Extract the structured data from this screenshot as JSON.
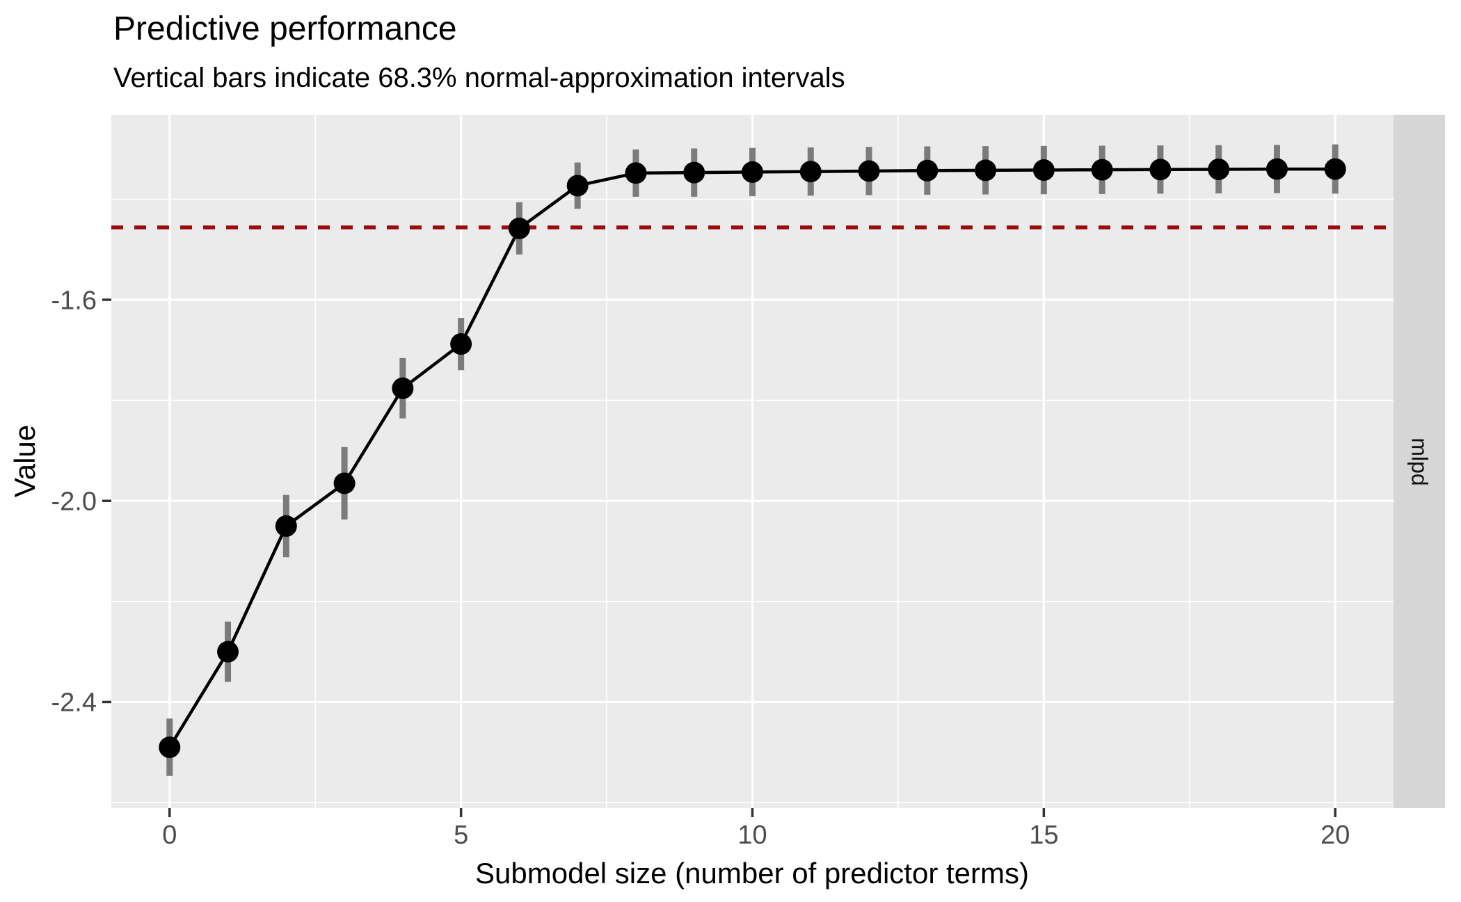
{
  "chart": {
    "title": "Predictive performance",
    "subtitle": "Vertical bars indicate 68.3% normal-approximation intervals",
    "xlabel": "Submodel size (number of predictor terms)",
    "ylabel": "Value",
    "facet_label": "mlpd"
  },
  "chart_data": {
    "type": "line",
    "title": "Predictive performance",
    "subtitle": "Vertical bars indicate 68.3% normal-approximation intervals",
    "xlabel": "Submodel size (number of predictor terms)",
    "ylabel": "Value",
    "facet_label": "mlpd",
    "interval_note": "68.3% normal-approximation intervals",
    "x": [
      0,
      1,
      2,
      3,
      4,
      5,
      6,
      7,
      8,
      9,
      10,
      11,
      12,
      13,
      14,
      15,
      16,
      17,
      18,
      19,
      20
    ],
    "y": [
      -2.49,
      -2.3,
      -2.05,
      -1.965,
      -1.776,
      -1.688,
      -1.458,
      -1.373,
      -1.348,
      -1.347,
      -1.346,
      -1.345,
      -1.344,
      -1.343,
      -1.3425,
      -1.342,
      -1.3415,
      -1.341,
      -1.3405,
      -1.34,
      -1.34
    ],
    "interval_half": [
      0.057,
      0.06,
      0.062,
      0.072,
      0.06,
      0.052,
      0.052,
      0.046,
      0.047,
      0.048,
      0.048,
      0.048,
      0.048,
      0.048,
      0.048,
      0.048,
      0.048,
      0.048,
      0.048,
      0.048,
      0.049
    ],
    "reference_line": -1.456,
    "x_ticks": [
      {
        "v": 0,
        "label": "0"
      },
      {
        "v": 5,
        "label": "5"
      },
      {
        "v": 10,
        "label": "10"
      },
      {
        "v": 15,
        "label": "15"
      },
      {
        "v": 20,
        "label": "20"
      }
    ],
    "y_ticks": [
      {
        "v": -1.6,
        "label": "-1.6"
      },
      {
        "v": -2.0,
        "label": "-2.0"
      },
      {
        "v": -2.4,
        "label": "-2.4"
      }
    ],
    "x_minor": [
      2.5,
      7.5,
      12.5,
      17.5
    ],
    "y_minor": [
      -1.4,
      -1.8,
      -2.2,
      -2.6
    ],
    "xlim": [
      -1.0,
      21.0
    ],
    "ylim": [
      -2.611,
      -1.232
    ],
    "grid": true,
    "legend": "none",
    "colors": {
      "point": "#000000",
      "line": "#000000",
      "interval": "#7b7b7b",
      "reference": "#990c0c",
      "panel_bg": "#ebebeb",
      "strip_bg": "#d6d6d6",
      "grid": "#ffffff",
      "axis_text": "#4d4d4d",
      "tick_mark": "#333333"
    }
  }
}
